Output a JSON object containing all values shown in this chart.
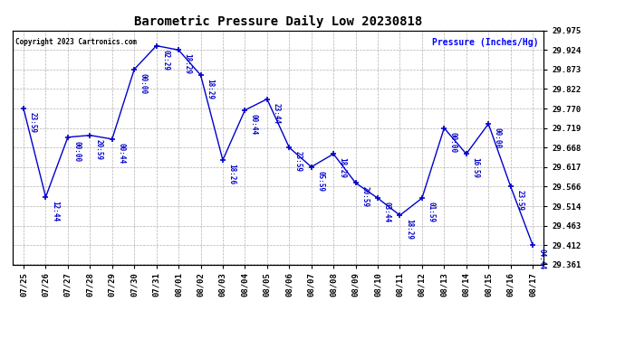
{
  "title": "Barometric Pressure Daily Low 20230818",
  "ylabel": "Pressure (Inches/Hg)",
  "copyright": "Copyright 2023 Cartronics.com",
  "line_color": "#0000cc",
  "bg_color": "#ffffff",
  "plot_bg_color": "#ffffff",
  "grid_color": "#b0b0b0",
  "ylim": [
    29.361,
    29.975
  ],
  "yticks": [
    29.361,
    29.412,
    29.463,
    29.514,
    29.566,
    29.617,
    29.668,
    29.719,
    29.77,
    29.822,
    29.873,
    29.924,
    29.975
  ],
  "data": [
    {
      "date": "07/25",
      "value": 29.77,
      "time": "23:59"
    },
    {
      "date": "07/26",
      "value": 29.538,
      "time": "12:44"
    },
    {
      "date": "07/27",
      "value": 29.695,
      "time": "00:00"
    },
    {
      "date": "07/28",
      "value": 29.7,
      "time": "20:59"
    },
    {
      "date": "07/29",
      "value": 29.69,
      "time": "00:44"
    },
    {
      "date": "07/30",
      "value": 29.873,
      "time": "00:00"
    },
    {
      "date": "07/31",
      "value": 29.935,
      "time": "02:29"
    },
    {
      "date": "08/01",
      "value": 29.924,
      "time": "18:29"
    },
    {
      "date": "08/02",
      "value": 29.858,
      "time": "18:29"
    },
    {
      "date": "08/03",
      "value": 29.635,
      "time": "18:26"
    },
    {
      "date": "08/04",
      "value": 29.766,
      "time": "00:44"
    },
    {
      "date": "08/05",
      "value": 29.795,
      "time": "23:44"
    },
    {
      "date": "08/06",
      "value": 29.668,
      "time": "23:59"
    },
    {
      "date": "08/07",
      "value": 29.617,
      "time": "05:59"
    },
    {
      "date": "08/08",
      "value": 29.651,
      "time": "18:29"
    },
    {
      "date": "08/09",
      "value": 29.575,
      "time": "20:59"
    },
    {
      "date": "08/10",
      "value": 29.535,
      "time": "03:44"
    },
    {
      "date": "08/11",
      "value": 29.49,
      "time": "18:29"
    },
    {
      "date": "08/12",
      "value": 29.535,
      "time": "01:59"
    },
    {
      "date": "08/13",
      "value": 29.719,
      "time": "00:00"
    },
    {
      "date": "08/14",
      "value": 29.651,
      "time": "16:59"
    },
    {
      "date": "08/15",
      "value": 29.73,
      "time": "00:00"
    },
    {
      "date": "08/16",
      "value": 29.566,
      "time": "23:59"
    },
    {
      "date": "08/17",
      "value": 29.412,
      "time": "04:44"
    }
  ]
}
